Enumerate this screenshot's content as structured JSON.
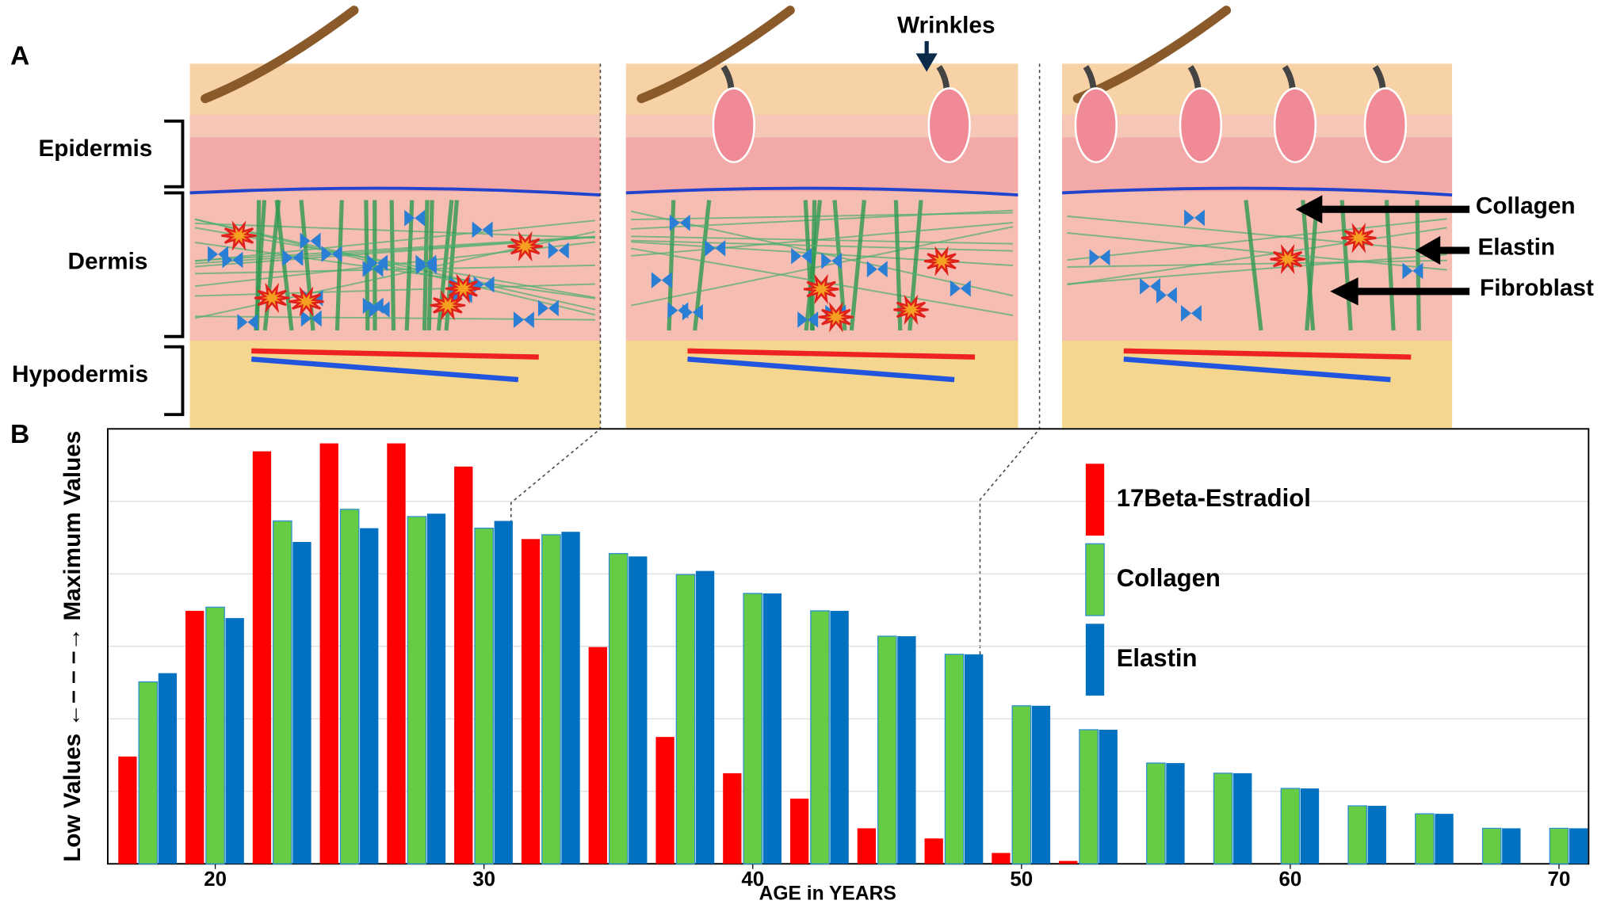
{
  "panel_a": {
    "label": "A",
    "layers": {
      "epidermis": "Epidermis",
      "dermis": "Dermis",
      "hypodermis": "Hypodermis"
    },
    "annotations": {
      "wrinkles": "Wrinkles",
      "collagen": "Collagen",
      "elastin": "Elastin",
      "fibroblast": "Fibroblast"
    }
  },
  "chart_data": {
    "type": "bar",
    "panel_label": "B",
    "xlabel": "AGE in YEARS",
    "ylabel": "Low Values ←– – –→ Maximum Values",
    "x": [
      17.5,
      20,
      22.5,
      25,
      27.5,
      30,
      32.5,
      35,
      37.5,
      40,
      42.5,
      45,
      47.5,
      50,
      52.5,
      55,
      57.5,
      60,
      62.5,
      65,
      67.5,
      70
    ],
    "series": [
      {
        "name": "17Beta-Estradiol",
        "color": "#ff0000",
        "values": [
          1.48,
          3.49,
          5.69,
          5.8,
          5.8,
          5.48,
          4.48,
          2.99,
          1.75,
          1.25,
          0.9,
          0.49,
          0.35,
          0.15,
          0.04,
          null,
          null,
          null,
          null,
          null,
          null,
          null
        ]
      },
      {
        "name": "Collagen",
        "color": "#66cc44",
        "values": [
          2.51,
          3.54,
          4.73,
          4.89,
          4.79,
          4.63,
          4.54,
          4.28,
          3.99,
          3.73,
          3.49,
          3.14,
          2.89,
          2.18,
          1.85,
          1.39,
          1.25,
          1.04,
          0.8,
          0.69,
          0.49,
          0.49
        ]
      },
      {
        "name": "Elastin",
        "color": "#0070c0",
        "values": [
          2.63,
          3.39,
          4.44,
          4.63,
          4.83,
          4.73,
          4.58,
          4.24,
          4.04,
          3.73,
          3.49,
          3.14,
          2.89,
          2.18,
          1.85,
          1.39,
          1.25,
          1.04,
          0.8,
          0.69,
          0.49,
          0.49
        ]
      }
    ],
    "xlim": [
      16,
      71.1
    ],
    "xticks": [
      20,
      30,
      40,
      50,
      60,
      70
    ],
    "ylim": [
      0,
      6
    ],
    "yticks": [
      0,
      1,
      2,
      3,
      4,
      5,
      6
    ],
    "grid": true,
    "legend": "upper right"
  }
}
